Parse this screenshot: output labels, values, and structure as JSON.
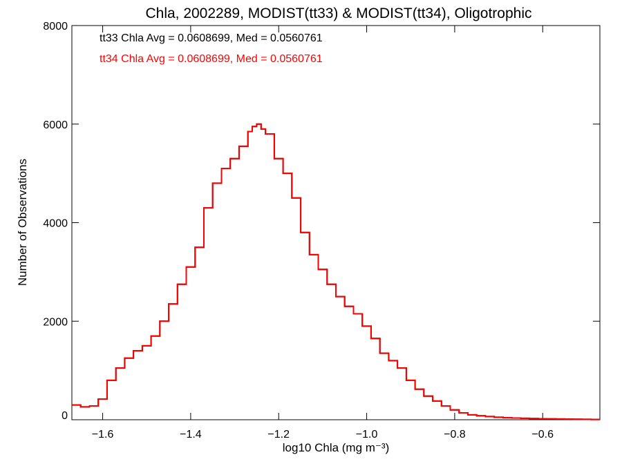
{
  "colors": {
    "series_tt33": "#000000",
    "series_tt34": "#ff0000",
    "axes": "#000000",
    "background": "#ffffff"
  },
  "chart_data": {
    "type": "line",
    "title": "Chla, 2002289, MODIST(tt33) & MODIST(tt34), Oligotrophic",
    "xlabel": "log10 Chla (mg m⁻³)",
    "ylabel": "Number of Observations",
    "xlim": [
      -1.67,
      -0.47
    ],
    "ylim": [
      0,
      8000
    ],
    "x_ticks": [
      -1.6,
      -1.4,
      -1.2,
      -1.0,
      -0.8,
      -0.6
    ],
    "x_tick_labels": [
      "−1.6",
      "−1.4",
      "−1.2",
      "−1.0",
      "−0.8",
      "−0.6"
    ],
    "y_ticks": [
      0,
      2000,
      4000,
      6000,
      8000
    ],
    "y_tick_labels": [
      "0",
      "2000",
      "4000",
      "6000",
      "8000"
    ],
    "grid": false,
    "legend_position": "top-left",
    "annotations": [
      "tt33 Chla Avg = 0.0608699, Med = 0.0560761",
      "tt34 Chla Avg = 0.0608699, Med = 0.0560761"
    ],
    "x": [
      -1.67,
      -1.65,
      -1.63,
      -1.61,
      -1.59,
      -1.57,
      -1.55,
      -1.53,
      -1.51,
      -1.49,
      -1.47,
      -1.45,
      -1.43,
      -1.41,
      -1.39,
      -1.37,
      -1.35,
      -1.33,
      -1.31,
      -1.29,
      -1.27,
      -1.26,
      -1.25,
      -1.24,
      -1.23,
      -1.21,
      -1.19,
      -1.17,
      -1.15,
      -1.13,
      -1.11,
      -1.09,
      -1.07,
      -1.05,
      -1.03,
      -1.01,
      -0.99,
      -0.97,
      -0.95,
      -0.93,
      -0.91,
      -0.89,
      -0.87,
      -0.85,
      -0.83,
      -0.81,
      -0.79,
      -0.77,
      -0.75,
      -0.73,
      -0.71,
      -0.69,
      -0.67,
      -0.65,
      -0.63,
      -0.61,
      -0.59,
      -0.57,
      -0.55,
      -0.53,
      -0.51,
      -0.49,
      -0.47
    ],
    "series": [
      {
        "name": "tt33",
        "values": [
          300,
          260,
          280,
          420,
          800,
          1050,
          1250,
          1400,
          1500,
          1700,
          2000,
          2350,
          2750,
          3100,
          3500,
          4300,
          4800,
          5100,
          5300,
          5550,
          5850,
          5950,
          6000,
          5900,
          5800,
          5300,
          5000,
          4500,
          3800,
          3350,
          3050,
          2750,
          2500,
          2300,
          2150,
          1900,
          1650,
          1350,
          1200,
          1050,
          800,
          620,
          480,
          380,
          280,
          200,
          140,
          100,
          80,
          65,
          50,
          40,
          35,
          30,
          25,
          20,
          18,
          15,
          12,
          10,
          8,
          6,
          5
        ]
      },
      {
        "name": "tt34",
        "values": [
          300,
          260,
          280,
          420,
          800,
          1050,
          1250,
          1400,
          1500,
          1700,
          2000,
          2350,
          2750,
          3100,
          3500,
          4300,
          4800,
          5100,
          5300,
          5550,
          5850,
          5950,
          6000,
          5900,
          5800,
          5300,
          5000,
          4500,
          3800,
          3350,
          3050,
          2750,
          2500,
          2300,
          2150,
          1900,
          1650,
          1350,
          1200,
          1050,
          800,
          620,
          480,
          380,
          280,
          200,
          140,
          100,
          80,
          65,
          50,
          40,
          35,
          30,
          25,
          20,
          18,
          15,
          12,
          10,
          8,
          6,
          5
        ]
      }
    ]
  }
}
